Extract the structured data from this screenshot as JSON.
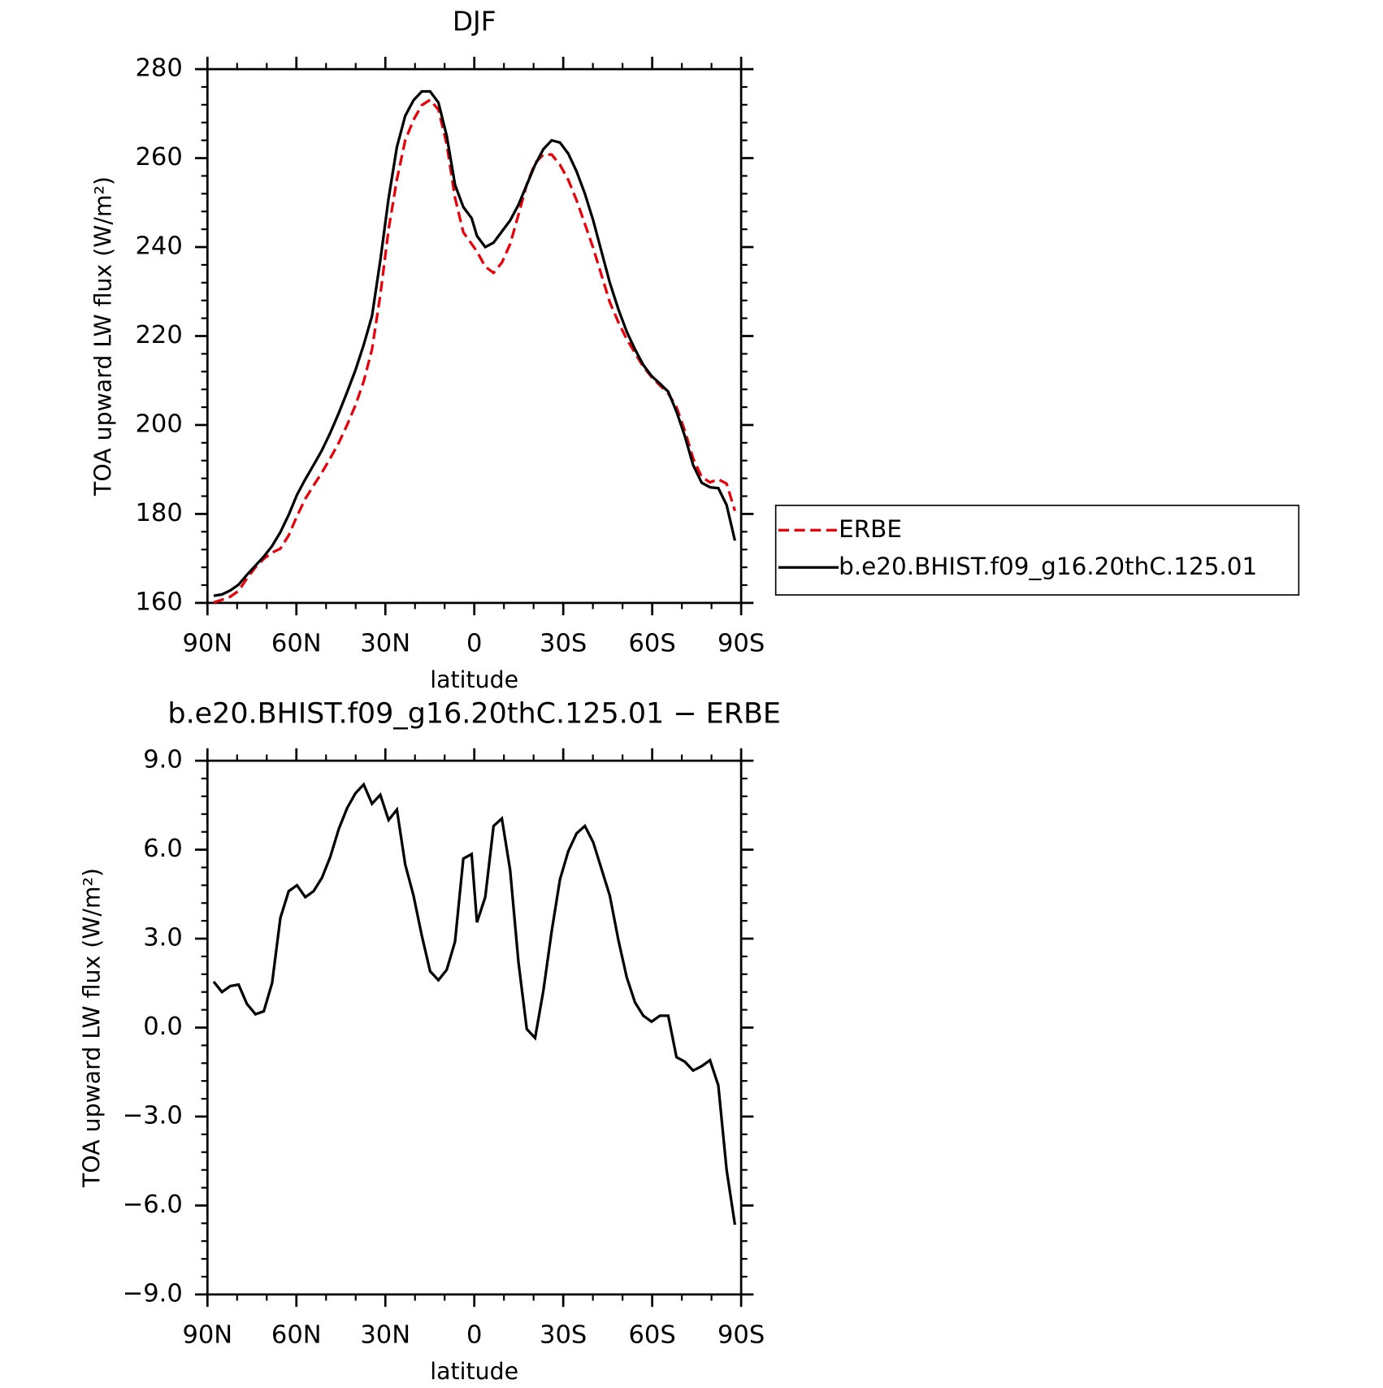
{
  "chart_data": [
    {
      "type": "line",
      "title": "DJF",
      "x_label": "latitude",
      "y_label": "TOA upward LW flux (W/m²)",
      "x": [
        87.9,
        85.1,
        82.3,
        79.5,
        76.7,
        73.8,
        71.0,
        68.2,
        65.4,
        62.6,
        59.8,
        57.0,
        54.2,
        51.4,
        48.6,
        45.7,
        42.9,
        40.1,
        37.3,
        34.5,
        31.7,
        28.9,
        26.1,
        23.3,
        20.5,
        17.7,
        14.9,
        12.1,
        9.3,
        6.5,
        3.7,
        0.9,
        -0.9,
        -3.7,
        -6.5,
        -9.3,
        -12.1,
        -14.9,
        -17.7,
        -20.5,
        -23.3,
        -26.1,
        -28.9,
        -31.7,
        -34.5,
        -37.3,
        -40.1,
        -42.9,
        -45.7,
        -48.6,
        -51.4,
        -54.2,
        -57.0,
        -59.8,
        -62.6,
        -65.4,
        -68.2,
        -71.0,
        -73.8,
        -76.7,
        -79.5,
        -82.3,
        -85.1,
        -87.9
      ],
      "series": [
        {
          "name": "ERBE",
          "color": "#e8000b",
          "line_style": "dashed",
          "values": [
            160.1,
            160.7,
            161.4,
            162.7,
            165.5,
            168.0,
            169.9,
            171.3,
            172.2,
            175.2,
            179.5,
            183.4,
            186.4,
            189.3,
            192.5,
            196.0,
            200.0,
            204.4,
            209.8,
            217.0,
            229.2,
            244.0,
            255.2,
            264.0,
            268.6,
            271.9,
            273.1,
            270.9,
            263.1,
            251.1,
            243.3,
            240.7,
            239.0,
            235.6,
            234.2,
            236.5,
            240.7,
            247.3,
            254.1,
            258.9,
            260.8,
            260.8,
            258.5,
            255.1,
            250.5,
            245.2,
            239.8,
            233.7,
            227.6,
            223.1,
            219.3,
            216.2,
            213.1,
            210.8,
            208.9,
            207.1,
            204.0,
            198.7,
            192.5,
            188.3,
            187.1,
            187.8,
            186.8,
            180.7
          ]
        },
        {
          "name": "b.e20.BHIST.f09_g16.20thC.125.01",
          "color": "#000000",
          "line_style": "solid",
          "values": [
            161.6,
            161.9,
            162.8,
            164.1,
            166.3,
            168.4,
            170.4,
            172.8,
            175.9,
            179.8,
            184.3,
            187.8,
            191,
            194.3,
            198.2,
            202.7,
            207.4,
            212.3,
            218,
            224.5,
            237,
            251,
            262.5,
            269.5,
            273,
            275,
            275,
            272.5,
            265,
            254,
            249,
            246.5,
            242.5,
            240,
            241,
            243.5,
            246,
            249.5,
            254,
            258.5,
            262,
            264,
            263.5,
            261,
            257,
            252,
            246,
            239,
            232,
            226,
            221,
            217,
            213.5,
            211,
            209.3,
            207.5,
            203,
            197.5,
            191,
            187,
            186,
            185.8,
            182,
            174
          ]
        }
      ],
      "xlim": [
        90,
        -90
      ],
      "xticks": [
        {
          "value": 90,
          "label": "90N"
        },
        {
          "value": 60,
          "label": "60N"
        },
        {
          "value": 30,
          "label": "30N"
        },
        0,
        {
          "value": -30,
          "label": "30S"
        },
        {
          "value": -60,
          "label": "60S"
        },
        {
          "value": -90,
          "label": "90S"
        }
      ],
      "ylim": [
        160,
        280
      ],
      "yticks": [
        160,
        180,
        200,
        220,
        240,
        260,
        280
      ],
      "legend": "right"
    },
    {
      "type": "line",
      "title": "b.e20.BHIST.f09_g16.20thC.125.01 − ERBE",
      "x_label": "latitude",
      "y_label": "TOA upward LW flux (W/m²)",
      "x": [
        87.9,
        85.1,
        82.3,
        79.5,
        76.7,
        73.8,
        71.0,
        68.2,
        65.4,
        62.6,
        59.8,
        57.0,
        54.2,
        51.4,
        48.6,
        45.7,
        42.9,
        40.1,
        37.3,
        34.5,
        31.7,
        28.9,
        26.1,
        23.3,
        20.5,
        17.7,
        14.9,
        12.1,
        9.3,
        6.5,
        3.7,
        0.9,
        -0.9,
        -3.7,
        -6.5,
        -9.3,
        -12.1,
        -14.9,
        -17.7,
        -20.5,
        -23.3,
        -26.1,
        -28.9,
        -31.7,
        -34.5,
        -37.3,
        -40.1,
        -42.9,
        -45.7,
        -48.6,
        -51.4,
        -54.2,
        -57.0,
        -59.8,
        -62.6,
        -65.4,
        -68.2,
        -71.0,
        -73.8,
        -76.7,
        -79.5,
        -82.3,
        -85.1,
        -87.9
      ],
      "series": [
        {
          "color": "#000000",
          "line_style": "solid",
          "values": [
            1.55,
            1.2,
            1.4,
            1.45,
            0.8,
            0.45,
            0.55,
            1.5,
            3.7,
            4.6,
            4.8,
            4.4,
            4.6,
            5.05,
            5.75,
            6.7,
            7.4,
            7.9,
            8.2,
            7.55,
            7.85,
            7.0,
            7.35,
            5.5,
            4.45,
            3.1,
            1.9,
            1.6,
            1.95,
            2.9,
            5.7,
            5.85,
            3.55,
            4.4,
            6.8,
            7.05,
            5.3,
            2.2,
            -0.05,
            -0.35,
            1.25,
            3.25,
            5.0,
            5.95,
            6.55,
            6.8,
            6.25,
            5.35,
            4.45,
            2.95,
            1.7,
            0.85,
            0.4,
            0.2,
            0.4,
            0.4,
            -1.0,
            -1.15,
            -1.45,
            -1.3,
            -1.1,
            -1.95,
            -4.8,
            -6.65
          ]
        }
      ],
      "xlim": [
        90,
        -90
      ],
      "xticks": [
        {
          "value": 90,
          "label": "90N"
        },
        {
          "value": 60,
          "label": "60N"
        },
        {
          "value": 30,
          "label": "30N"
        },
        0,
        {
          "value": -30,
          "label": "30S"
        },
        {
          "value": -60,
          "label": "60S"
        },
        {
          "value": -90,
          "label": "90S"
        }
      ],
      "ylim": [
        -9,
        9
      ],
      "yticks": [
        {
          "value": -9,
          "label": "−9.0"
        },
        {
          "value": -6,
          "label": "−6.0"
        },
        {
          "value": -3,
          "label": "−3.0"
        },
        {
          "value": 0,
          "label": "0.0"
        },
        {
          "value": 3,
          "label": "3.0"
        },
        {
          "value": 6,
          "label": "6.0"
        },
        {
          "value": 9,
          "label": "9.0"
        }
      ]
    }
  ]
}
